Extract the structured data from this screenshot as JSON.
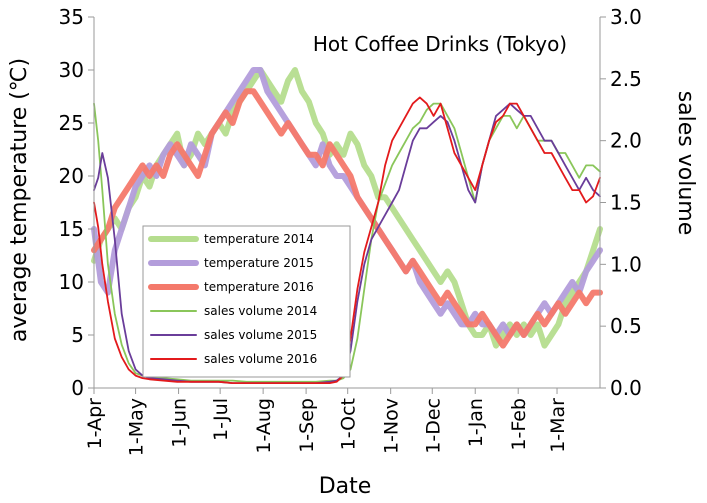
{
  "chart_data": {
    "type": "line",
    "title": "Hot Coffee Drinks (Tokyo)",
    "xlabel": "Date",
    "ylabel_left": "average temperature (℃)",
    "ylabel_right": "sales volume",
    "left_axis": {
      "min": 0,
      "max": 35,
      "ticks": [
        "0",
        "5",
        "10",
        "15",
        "20",
        "25",
        "30",
        "35"
      ]
    },
    "right_axis": {
      "min": 0,
      "max": 3.0,
      "ticks": [
        "0.0",
        "0.5",
        "1.0",
        "1.5",
        "2.0",
        "2.5",
        "3.0"
      ]
    },
    "x_axis": {
      "min_day": 0,
      "max_day": 365,
      "tick_labels": [
        "1-Apr",
        "1-May",
        "1-Jun",
        "1-Jul",
        "1-Aug",
        "1-Sep",
        "1-Oct",
        "1-Nov",
        "1-Dec",
        "1-Jan",
        "1-Feb",
        "1-Mar"
      ],
      "tick_days": [
        0,
        30,
        61,
        91,
        122,
        153,
        183,
        214,
        244,
        275,
        306,
        334
      ]
    },
    "legend": {
      "position": "left-lower",
      "entries": [
        "temperature 2014",
        "temperature 2015",
        "temperature 2016",
        "sales volume 2014",
        "sales volume 2015",
        "sales volume 2016"
      ]
    },
    "grid": false,
    "series": [
      {
        "name": "temperature 2014",
        "axis": "left",
        "color": "#b5dd8e",
        "kind": "temperature",
        "x": [
          0,
          5,
          10,
          15,
          20,
          25,
          30,
          35,
          40,
          45,
          50,
          55,
          60,
          65,
          70,
          75,
          80,
          85,
          90,
          95,
          100,
          105,
          110,
          115,
          120,
          125,
          130,
          135,
          140,
          145,
          150,
          155,
          160,
          165,
          170,
          175,
          180,
          185,
          190,
          195,
          200,
          205,
          210,
          215,
          220,
          225,
          230,
          235,
          240,
          245,
          250,
          255,
          260,
          265,
          270,
          275,
          280,
          285,
          290,
          295,
          300,
          305,
          310,
          315,
          320,
          325,
          330,
          335,
          340,
          345,
          350,
          355,
          360,
          365
        ],
        "y": [
          12,
          14,
          15,
          16,
          15,
          17,
          18,
          20,
          19,
          21,
          22,
          23,
          24,
          21,
          22,
          24,
          23,
          24,
          25,
          24,
          26,
          27,
          28,
          29,
          30,
          29,
          28,
          27,
          29,
          30,
          28,
          27,
          25,
          24,
          22,
          23,
          22,
          24,
          23,
          21,
          20,
          18,
          18,
          17,
          16,
          15,
          14,
          13,
          12,
          11,
          10,
          11,
          10,
          8,
          6,
          5,
          5,
          6,
          4,
          5,
          6,
          5,
          6,
          5,
          6,
          4,
          5,
          6,
          8,
          9,
          10,
          11,
          13,
          15
        ]
      },
      {
        "name": "temperature 2015",
        "axis": "left",
        "color": "#b39ddb",
        "kind": "temperature",
        "x": [
          0,
          5,
          10,
          15,
          20,
          25,
          30,
          35,
          40,
          45,
          50,
          55,
          60,
          65,
          70,
          75,
          80,
          85,
          90,
          95,
          100,
          105,
          110,
          115,
          120,
          125,
          130,
          135,
          140,
          145,
          150,
          155,
          160,
          165,
          170,
          175,
          180,
          185,
          190,
          195,
          200,
          205,
          210,
          215,
          220,
          225,
          230,
          235,
          240,
          245,
          250,
          255,
          260,
          265,
          270,
          275,
          280,
          285,
          290,
          295,
          300,
          305,
          310,
          315,
          320,
          325,
          330,
          335,
          340,
          345,
          350,
          355,
          360,
          365
        ],
        "y": [
          15,
          10,
          9,
          13,
          15,
          17,
          19,
          20,
          21,
          20,
          22,
          23,
          22,
          21,
          23,
          22,
          21,
          24,
          25,
          26,
          27,
          28,
          29,
          30,
          30,
          28,
          27,
          26,
          25,
          24,
          23,
          22,
          21,
          23,
          21,
          20,
          20,
          19,
          18,
          17,
          16,
          15,
          14,
          13,
          12,
          11,
          12,
          10,
          9,
          8,
          7,
          8,
          7,
          6,
          6,
          7,
          6,
          6,
          5,
          6,
          5,
          6,
          5,
          6,
          7,
          8,
          7,
          8,
          9,
          10,
          9,
          11,
          12,
          13
        ]
      },
      {
        "name": "temperature 2016",
        "axis": "left",
        "color": "#f4796b",
        "kind": "temperature",
        "x": [
          0,
          5,
          10,
          15,
          20,
          25,
          30,
          35,
          40,
          45,
          50,
          55,
          60,
          65,
          70,
          75,
          80,
          85,
          90,
          95,
          100,
          105,
          110,
          115,
          120,
          125,
          130,
          135,
          140,
          145,
          150,
          155,
          160,
          165,
          170,
          175,
          180,
          185,
          190,
          195,
          200,
          205,
          210,
          215,
          220,
          225,
          230,
          235,
          240,
          245,
          250,
          255,
          260,
          265,
          270,
          275,
          280,
          285,
          290,
          295,
          300,
          305,
          310,
          315,
          320,
          325,
          330,
          335,
          340,
          345,
          350,
          355,
          360,
          365
        ],
        "y": [
          13,
          14,
          15,
          17,
          18,
          19,
          20,
          21,
          20,
          21,
          20,
          22,
          23,
          22,
          21,
          20,
          22,
          24,
          25,
          26,
          25,
          27,
          28,
          28,
          27,
          26,
          25,
          24,
          25,
          24,
          23,
          22,
          22,
          21,
          23,
          22,
          21,
          20,
          18,
          17,
          16,
          15,
          14,
          13,
          12,
          11,
          12,
          11,
          10,
          9,
          8,
          9,
          8,
          7,
          6,
          6,
          7,
          6,
          5,
          4,
          5,
          6,
          5,
          6,
          7,
          6,
          7,
          8,
          7,
          8,
          9,
          8,
          9,
          9
        ]
      },
      {
        "name": "sales volume 2014",
        "axis": "right",
        "color": "#8ac65a",
        "kind": "sales",
        "x": [
          0,
          3,
          6,
          10,
          15,
          20,
          25,
          30,
          35,
          40,
          50,
          60,
          70,
          80,
          90,
          100,
          110,
          120,
          130,
          140,
          150,
          160,
          170,
          175,
          180,
          185,
          190,
          195,
          200,
          205,
          210,
          215,
          220,
          225,
          230,
          235,
          240,
          245,
          250,
          255,
          260,
          265,
          270,
          275,
          280,
          285,
          290,
          295,
          300,
          305,
          310,
          315,
          320,
          325,
          330,
          335,
          340,
          345,
          350,
          355,
          360,
          365
        ],
        "y": [
          2.3,
          2.0,
          1.6,
          1.0,
          0.6,
          0.35,
          0.2,
          0.12,
          0.1,
          0.09,
          0.08,
          0.07,
          0.06,
          0.06,
          0.06,
          0.06,
          0.05,
          0.05,
          0.05,
          0.05,
          0.05,
          0.05,
          0.06,
          0.06,
          0.08,
          0.15,
          0.4,
          0.8,
          1.2,
          1.5,
          1.65,
          1.8,
          1.9,
          2.0,
          2.1,
          2.15,
          2.25,
          2.3,
          2.3,
          2.2,
          2.1,
          1.9,
          1.7,
          1.5,
          1.8,
          2.0,
          2.1,
          2.2,
          2.2,
          2.1,
          2.2,
          2.1,
          2.0,
          2.0,
          2.0,
          1.9,
          1.9,
          1.8,
          1.7,
          1.8,
          1.8,
          1.75
        ]
      },
      {
        "name": "sales volume 2015",
        "axis": "right",
        "color": "#6a3d9a",
        "kind": "sales",
        "x": [
          0,
          3,
          6,
          10,
          15,
          20,
          25,
          30,
          35,
          40,
          50,
          60,
          70,
          80,
          90,
          100,
          110,
          120,
          130,
          140,
          150,
          160,
          170,
          175,
          180,
          185,
          190,
          195,
          200,
          205,
          210,
          215,
          220,
          225,
          230,
          235,
          240,
          245,
          250,
          255,
          260,
          265,
          270,
          275,
          280,
          285,
          290,
          295,
          300,
          305,
          310,
          315,
          320,
          325,
          330,
          335,
          340,
          345,
          350,
          355,
          360,
          365
        ],
        "y": [
          1.6,
          1.7,
          1.9,
          1.7,
          1.2,
          0.6,
          0.3,
          0.15,
          0.1,
          0.08,
          0.07,
          0.06,
          0.05,
          0.05,
          0.05,
          0.04,
          0.04,
          0.04,
          0.04,
          0.04,
          0.04,
          0.04,
          0.05,
          0.06,
          0.1,
          0.3,
          0.7,
          1.0,
          1.2,
          1.3,
          1.4,
          1.5,
          1.6,
          1.8,
          2.0,
          2.1,
          2.1,
          2.15,
          2.2,
          2.15,
          2.0,
          1.8,
          1.6,
          1.5,
          1.8,
          2.0,
          2.2,
          2.25,
          2.3,
          2.25,
          2.2,
          2.2,
          2.1,
          2.0,
          2.0,
          1.9,
          1.8,
          1.7,
          1.6,
          1.7,
          1.6,
          1.55
        ]
      },
      {
        "name": "sales volume 2016",
        "axis": "right",
        "color": "#e31a1c",
        "kind": "sales",
        "x": [
          0,
          3,
          6,
          10,
          15,
          20,
          25,
          30,
          35,
          40,
          50,
          60,
          70,
          80,
          90,
          100,
          110,
          120,
          130,
          140,
          150,
          160,
          170,
          175,
          180,
          185,
          190,
          195,
          200,
          205,
          210,
          215,
          220,
          225,
          230,
          235,
          240,
          245,
          250,
          255,
          260,
          265,
          270,
          275,
          280,
          285,
          290,
          295,
          300,
          305,
          310,
          315,
          320,
          325,
          330,
          335,
          340,
          345,
          350,
          355,
          360,
          365
        ],
        "y": [
          1.5,
          1.3,
          1.0,
          0.7,
          0.4,
          0.25,
          0.15,
          0.1,
          0.08,
          0.07,
          0.06,
          0.05,
          0.05,
          0.05,
          0.05,
          0.04,
          0.04,
          0.04,
          0.04,
          0.04,
          0.04,
          0.04,
          0.04,
          0.05,
          0.1,
          0.4,
          0.8,
          1.1,
          1.3,
          1.5,
          1.8,
          2.0,
          2.1,
          2.2,
          2.3,
          2.35,
          2.3,
          2.2,
          2.3,
          2.1,
          1.9,
          1.8,
          1.7,
          1.6,
          1.8,
          2.0,
          2.15,
          2.2,
          2.3,
          2.3,
          2.2,
          2.1,
          2.0,
          1.9,
          1.9,
          1.8,
          1.7,
          1.6,
          1.6,
          1.5,
          1.55,
          1.7
        ]
      }
    ]
  }
}
